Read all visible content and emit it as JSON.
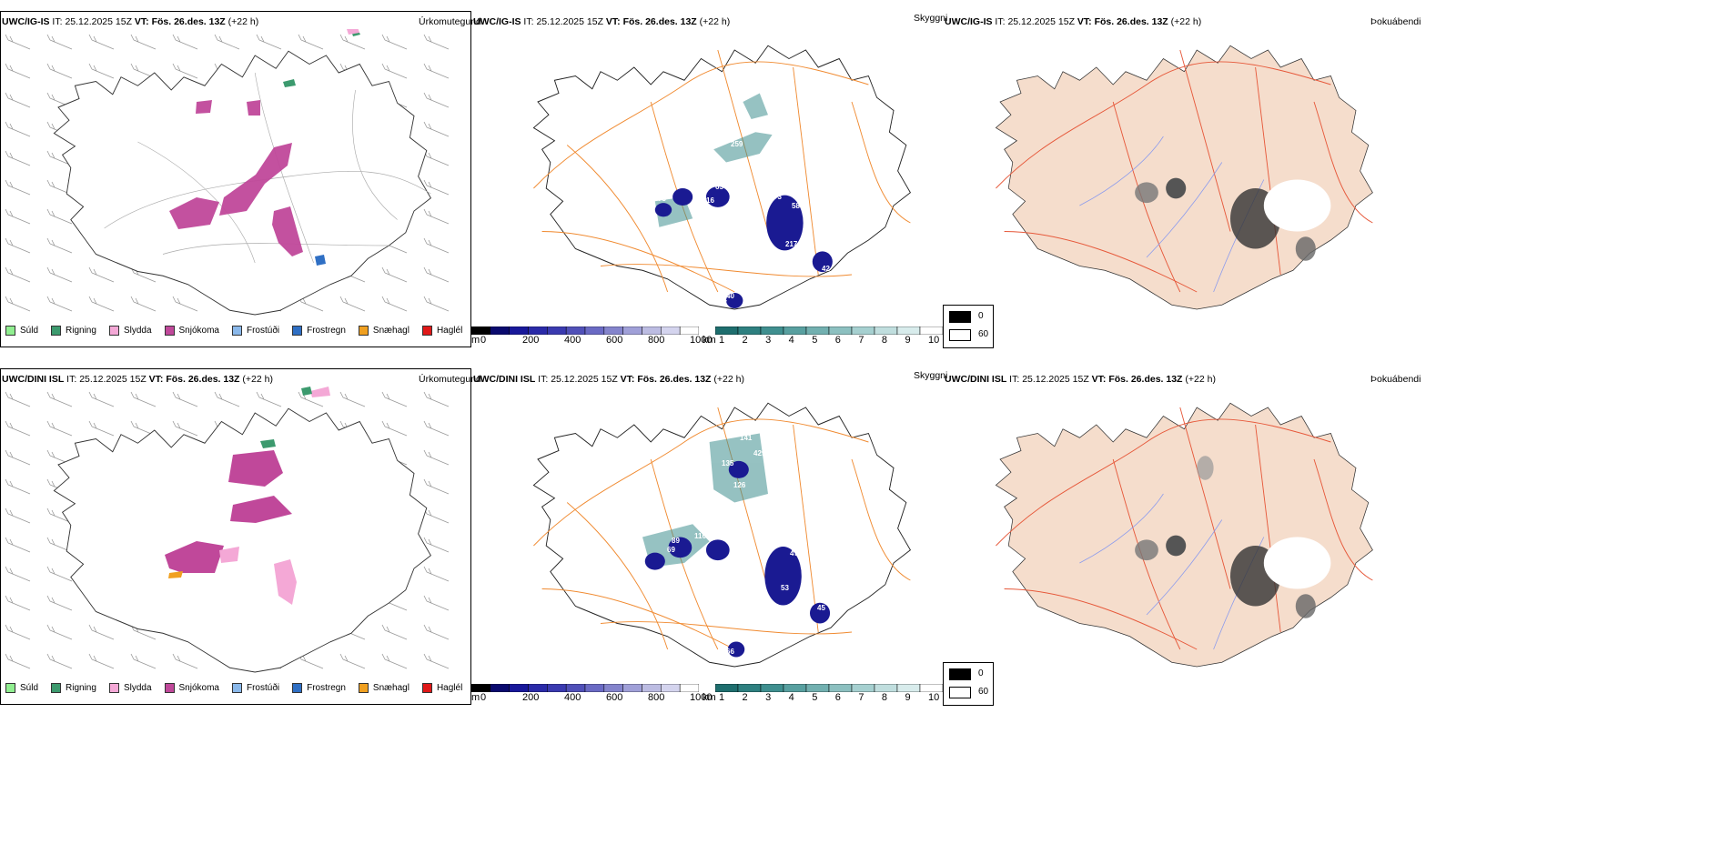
{
  "rows": [
    {
      "model": "UWC/IG-IS",
      "init_label": "IT:",
      "init": "25.12.2025 15Z",
      "valid_label": "VT:",
      "valid": "Fös. 26.des. 13Z",
      "lead": "(+22 h)"
    },
    {
      "model": "UWC/DINI ISL",
      "init_label": "IT:",
      "init": "25.12.2025 15Z",
      "valid_label": "VT:",
      "valid": "Fös. 26.des. 13Z",
      "lead": "(+22 h)"
    }
  ],
  "panel_titles": {
    "precip": "Úrkomutegund",
    "vis": "Skyggni",
    "fog": "Þokuábendi"
  },
  "precip_legend": [
    {
      "label": "Súld",
      "color": "#90ee90"
    },
    {
      "label": "Rigning",
      "color": "#3c9a6e"
    },
    {
      "label": "Slydda",
      "color": "#f4a8d6"
    },
    {
      "label": "Snjókoma",
      "color": "#c0489a"
    },
    {
      "label": "Frostúði",
      "color": "#8ab8ea"
    },
    {
      "label": "Frostregn",
      "color": "#2f6fc4"
    },
    {
      "label": "Snæhagl",
      "color": "#f0a020"
    },
    {
      "label": "Haglél",
      "color": "#e01818"
    }
  ],
  "cloudbase_bar": {
    "unit": "m",
    "ticks": [
      "0",
      "200",
      "400",
      "600",
      "800",
      "1000"
    ],
    "colors": [
      "#000000",
      "#0a0a6e",
      "#18189a",
      "#2a2aa8",
      "#3a3ab0",
      "#5050b8",
      "#6a6ac4",
      "#8484cc",
      "#a0a0d8",
      "#bcbce2",
      "#d4d4ee",
      "#ffffff"
    ]
  },
  "visibility_bar": {
    "unit": "km",
    "ticks": [
      "1",
      "2",
      "3",
      "4",
      "5",
      "6",
      "7",
      "8",
      "9",
      "10"
    ],
    "colors": [
      "#1e6e6e",
      "#2e8080",
      "#3f8f8f",
      "#58a0a0",
      "#72b0b0",
      "#8cc0c0",
      "#a6d0d0",
      "#c0dede",
      "#d8ecec",
      "#ffffff"
    ]
  },
  "fog_legend": {
    "high": "0",
    "low": "60"
  },
  "labels_top": [
    "259",
    "116",
    "65",
    "73",
    "16",
    "73",
    "58",
    "217",
    "42",
    "40",
    "21",
    "67"
  ],
  "labels_bottom": [
    "141",
    "206",
    "429",
    "135",
    "126",
    "89",
    "116",
    "51",
    "69",
    "71",
    "47",
    "53",
    "45",
    "50",
    "66"
  ]
}
